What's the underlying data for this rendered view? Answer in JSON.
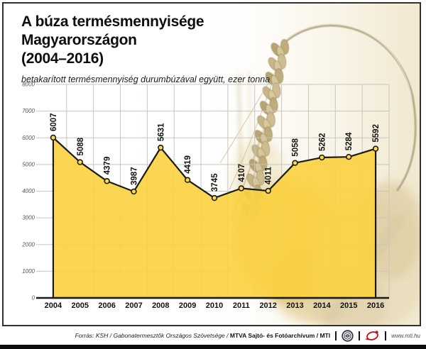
{
  "title": {
    "line1": "A búza termésmennyisége Magyarországon",
    "line2": "(2004–2016)"
  },
  "subtitle": "betakarított termésmennyiség durumbúzával együtt, ezer tonna",
  "chart_data": {
    "type": "area",
    "title": "A búza termésmennyisége Magyarországon (2004–2016)",
    "unit": "ezer tonna",
    "categories": [
      "2004",
      "2005",
      "2006",
      "2007",
      "2008",
      "2009",
      "2010",
      "2011",
      "2012",
      "2013",
      "2014",
      "2015",
      "2016"
    ],
    "values": [
      6007,
      5088,
      4379,
      3987,
      5631,
      4419,
      3745,
      4107,
      4011,
      5058,
      5262,
      5284,
      5592
    ],
    "xlabel": "",
    "ylabel": "",
    "ylim": [
      0,
      8000
    ],
    "ytick_step": 1000,
    "grid": true,
    "legend": "none",
    "colors": {
      "area_fill": "#FBD23F",
      "area_opacity": 0.9,
      "line": "#1b1b1b",
      "marker_fill": "#FFDC45",
      "marker_stroke": "#1b1b1b",
      "grid": "#c9c5bd",
      "axis": "#1b1b1b",
      "ytick_color": "#5a564e",
      "label_color": "#111111"
    }
  },
  "footer": {
    "source_prefix": "Forrás: KSH / Gabonatermesztők Országos Szövetsége / ",
    "source_bold": "MTVA Sajtó- és Fotóarchívum / MTI",
    "website": "www.mti.hu",
    "logos": [
      "mtva-logo",
      "mti-logo"
    ]
  }
}
